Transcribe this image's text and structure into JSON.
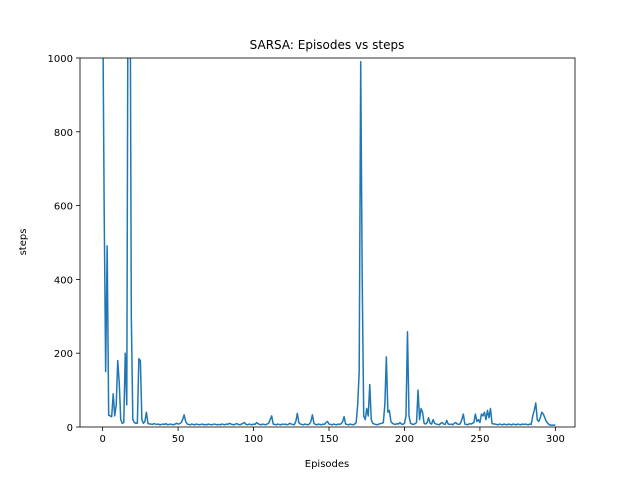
{
  "chart_data": {
    "type": "line",
    "title": "SARSA: Episodes vs steps",
    "xlabel": "Episodes",
    "ylabel": "steps",
    "x": [
      0,
      1,
      2,
      3,
      4,
      5,
      6,
      7,
      8,
      9,
      10,
      11,
      12,
      13,
      14,
      15,
      16,
      17,
      18,
      19,
      20,
      21,
      22,
      23,
      24,
      25,
      26,
      27,
      28,
      29,
      30,
      31,
      32,
      33,
      34,
      35,
      36,
      37,
      38,
      39,
      40,
      41,
      42,
      43,
      44,
      45,
      46,
      47,
      48,
      49,
      50,
      51,
      52,
      53,
      54,
      55,
      56,
      57,
      58,
      59,
      60,
      61,
      62,
      63,
      64,
      65,
      66,
      67,
      68,
      69,
      70,
      71,
      72,
      73,
      74,
      75,
      76,
      77,
      78,
      79,
      80,
      81,
      82,
      83,
      84,
      85,
      86,
      87,
      88,
      89,
      90,
      91,
      92,
      93,
      94,
      95,
      96,
      97,
      98,
      99,
      100,
      101,
      102,
      103,
      104,
      105,
      106,
      107,
      108,
      109,
      110,
      111,
      112,
      113,
      114,
      115,
      116,
      117,
      118,
      119,
      120,
      121,
      122,
      123,
      124,
      125,
      126,
      127,
      128,
      129,
      130,
      131,
      132,
      133,
      134,
      135,
      136,
      137,
      138,
      139,
      140,
      141,
      142,
      143,
      144,
      145,
      146,
      147,
      148,
      149,
      150,
      151,
      152,
      153,
      154,
      155,
      156,
      157,
      158,
      159,
      160,
      161,
      162,
      163,
      164,
      165,
      166,
      167,
      168,
      169,
      170,
      171,
      172,
      173,
      174,
      175,
      176,
      177,
      178,
      179,
      180,
      181,
      182,
      183,
      184,
      185,
      186,
      187,
      188,
      189,
      190,
      191,
      192,
      193,
      194,
      195,
      196,
      197,
      198,
      199,
      200,
      201,
      202,
      203,
      204,
      205,
      206,
      207,
      208,
      209,
      210,
      211,
      212,
      213,
      214,
      215,
      216,
      217,
      218,
      219,
      220,
      221,
      222,
      223,
      224,
      225,
      226,
      227,
      228,
      229,
      230,
      231,
      232,
      233,
      234,
      235,
      236,
      237,
      238,
      239,
      240,
      241,
      242,
      243,
      244,
      245,
      246,
      247,
      248,
      249,
      250,
      251,
      252,
      253,
      254,
      255,
      256,
      257,
      258,
      259,
      260,
      261,
      262,
      263,
      264,
      265,
      266,
      267,
      268,
      269,
      270,
      271,
      272,
      273,
      274,
      275,
      276,
      277,
      278,
      279,
      280,
      281,
      282,
      283,
      284,
      285,
      286,
      287,
      288,
      289,
      290,
      291,
      292,
      293,
      294,
      295,
      296,
      297,
      298,
      299,
      300
    ],
    "series": [
      {
        "color": "#1f77b4",
        "values": [
          1200,
          600,
          150,
          491,
          32,
          30,
          28,
          90,
          30,
          60,
          180,
          120,
          20,
          10,
          12,
          200,
          60,
          1500,
          1500,
          300,
          20,
          12,
          10,
          10,
          185,
          180,
          20,
          10,
          15,
          40,
          10,
          8,
          8,
          7,
          9,
          8,
          7,
          8,
          6,
          7,
          8,
          7,
          9,
          6,
          7,
          8,
          7,
          6,
          8,
          10,
          8,
          9,
          12,
          20,
          33,
          15,
          8,
          7,
          6,
          8,
          7,
          6,
          8,
          7,
          6,
          7,
          8,
          6,
          7,
          6,
          8,
          7,
          6,
          7,
          8,
          7,
          6,
          7,
          6,
          8,
          7,
          6,
          8,
          7,
          10,
          8,
          7,
          6,
          8,
          9,
          7,
          6,
          8,
          10,
          12,
          7,
          6,
          8,
          7,
          6,
          8,
          7,
          12,
          9,
          7,
          6,
          8,
          7,
          6,
          8,
          10,
          20,
          30,
          8,
          7,
          6,
          8,
          7,
          6,
          8,
          7,
          8,
          6,
          7,
          10,
          8,
          7,
          6,
          15,
          37,
          12,
          8,
          7,
          6,
          8,
          7,
          6,
          8,
          15,
          33,
          10,
          7,
          6,
          8,
          7,
          6,
          8,
          7,
          12,
          15,
          8,
          7,
          6,
          8,
          7,
          6,
          8,
          7,
          9,
          14,
          28,
          8,
          7,
          6,
          8,
          7,
          6,
          8,
          12,
          60,
          150,
          990,
          400,
          30,
          20,
          50,
          30,
          115,
          20,
          10,
          8,
          7,
          6,
          8,
          9,
          10,
          12,
          60,
          190,
          40,
          45,
          15,
          10,
          8,
          7,
          9,
          8,
          12,
          8,
          7,
          10,
          30,
          258,
          30,
          10,
          8,
          7,
          9,
          12,
          100,
          20,
          50,
          40,
          10,
          8,
          12,
          25,
          10,
          8,
          20,
          10,
          8,
          7,
          6,
          10,
          12,
          8,
          7,
          18,
          8,
          7,
          8,
          6,
          10,
          12,
          8,
          7,
          9,
          20,
          35,
          8,
          7,
          6,
          9,
          8,
          10,
          12,
          35,
          15,
          20,
          12,
          35,
          30,
          40,
          20,
          45,
          25,
          50,
          10,
          8,
          8,
          7,
          6,
          8,
          7,
          6,
          8,
          7,
          6,
          8,
          7,
          6,
          8,
          7,
          6,
          8,
          7,
          6,
          8,
          7,
          8,
          7,
          6,
          8,
          7,
          30,
          45,
          65,
          20,
          15,
          25,
          40,
          35,
          25,
          15,
          10,
          6,
          5,
          5,
          5,
          5
        ]
      }
    ],
    "xlim": [
      -15,
      313
    ],
    "ylim": [
      0,
      1000
    ],
    "xticks": [
      0,
      50,
      100,
      150,
      200,
      250,
      300
    ],
    "yticks": [
      0,
      200,
      400,
      600,
      800,
      1000
    ]
  }
}
